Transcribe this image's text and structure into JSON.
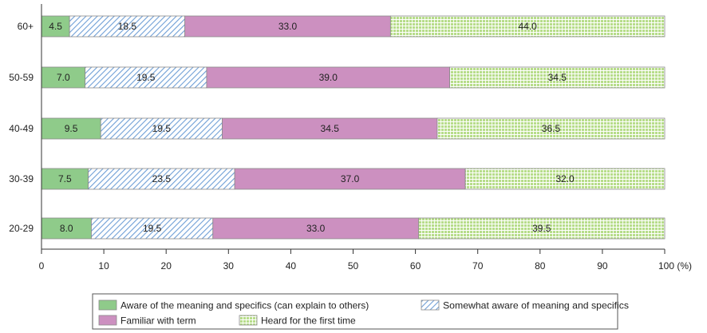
{
  "chart_data": {
    "type": "bar",
    "orientation": "horizontal",
    "stacked": true,
    "categories": [
      "60+",
      "50-59",
      "40-49",
      "30-39",
      "20-29"
    ],
    "series": [
      {
        "name": "Aware of the meaning and specifics (can explain to others)",
        "values": [
          4.5,
          7.0,
          9.5,
          7.5,
          8.0
        ],
        "color": "#8fcb8a",
        "pattern": "solid"
      },
      {
        "name": "Somewhat aware of meaning and specifics",
        "values": [
          18.5,
          19.5,
          19.5,
          23.5,
          19.5
        ],
        "color": "#6f9fd6",
        "pattern": "diagonal-hatch"
      },
      {
        "name": "Familiar with term",
        "values": [
          33.0,
          39.0,
          34.5,
          37.0,
          33.0
        ],
        "color": "#cc90c0",
        "pattern": "solid"
      },
      {
        "name": "Heard for the first time",
        "values": [
          44.0,
          34.5,
          36.5,
          32.0,
          39.5
        ],
        "color": "#b7dd8a",
        "pattern": "grid"
      }
    ],
    "x_ticks": [
      0,
      10,
      20,
      30,
      40,
      50,
      60,
      70,
      80,
      90,
      100
    ],
    "x_unit": "(%)",
    "xlim": [
      0,
      100
    ],
    "grid": false,
    "legend_position": "bottom"
  }
}
